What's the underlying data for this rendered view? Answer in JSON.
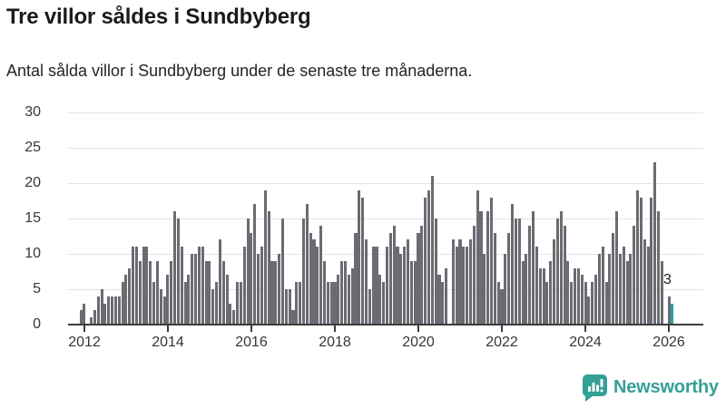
{
  "header": {
    "title": "Tre villor såldes i Sundbyberg",
    "subtitle": "Antal sålda villor i Sundbyberg under de senaste tre månaderna."
  },
  "chart_data": {
    "type": "bar",
    "title": "Tre villor såldes i Sundbyberg",
    "subtitle": "Antal sålda villor i Sundbyberg under de senaste tre månaderna.",
    "x_start_month": "2011-12",
    "x_end_month": "2026-02",
    "x_tick_labels": [
      "2012",
      "2014",
      "2016",
      "2018",
      "2020",
      "2022",
      "2024",
      "2026"
    ],
    "y_ticks": [
      0,
      5,
      10,
      15,
      20,
      25,
      30
    ],
    "ylim": [
      0,
      30
    ],
    "grid": true,
    "values": [
      2,
      3,
      0,
      1,
      2,
      4,
      5,
      3,
      4,
      4,
      4,
      4,
      6,
      7,
      8,
      11,
      11,
      9,
      11,
      11,
      9,
      6,
      9,
      5,
      4,
      7,
      9,
      16,
      15,
      11,
      6,
      7,
      10,
      10,
      11,
      11,
      9,
      9,
      5,
      6,
      12,
      9,
      7,
      3,
      2,
      6,
      6,
      11,
      15,
      13,
      17,
      10,
      11,
      19,
      16,
      9,
      9,
      10,
      15,
      5,
      5,
      2,
      6,
      6,
      15,
      17,
      13,
      12,
      11,
      14,
      9,
      6,
      6,
      6,
      7,
      9,
      9,
      7,
      8,
      13,
      19,
      18,
      12,
      5,
      11,
      11,
      7,
      6,
      11,
      13,
      14,
      11,
      10,
      11,
      12,
      9,
      9,
      13,
      14,
      18,
      19,
      21,
      15,
      7,
      6,
      8,
      0,
      12,
      11,
      12,
      11,
      11,
      12,
      14,
      19,
      16,
      10,
      16,
      18,
      13,
      6,
      5,
      10,
      13,
      17,
      15,
      15,
      9,
      10,
      14,
      16,
      11,
      8,
      8,
      6,
      9,
      12,
      15,
      16,
      14,
      9,
      6,
      8,
      8,
      7,
      6,
      4,
      6,
      7,
      10,
      11,
      6,
      10,
      13,
      16,
      10,
      11,
      9,
      10,
      14,
      19,
      18,
      12,
      11,
      18,
      23,
      16,
      9,
      0,
      4,
      3
    ],
    "bar_color": "#6b6b73",
    "highlight_last_color": "#29a09a",
    "annotation": {
      "text": "3",
      "value": 3
    }
  },
  "branding": {
    "name": "Newsworthy",
    "color": "#35a096",
    "icon": "newsworthy-speech-bubble-bar-chart-icon"
  }
}
